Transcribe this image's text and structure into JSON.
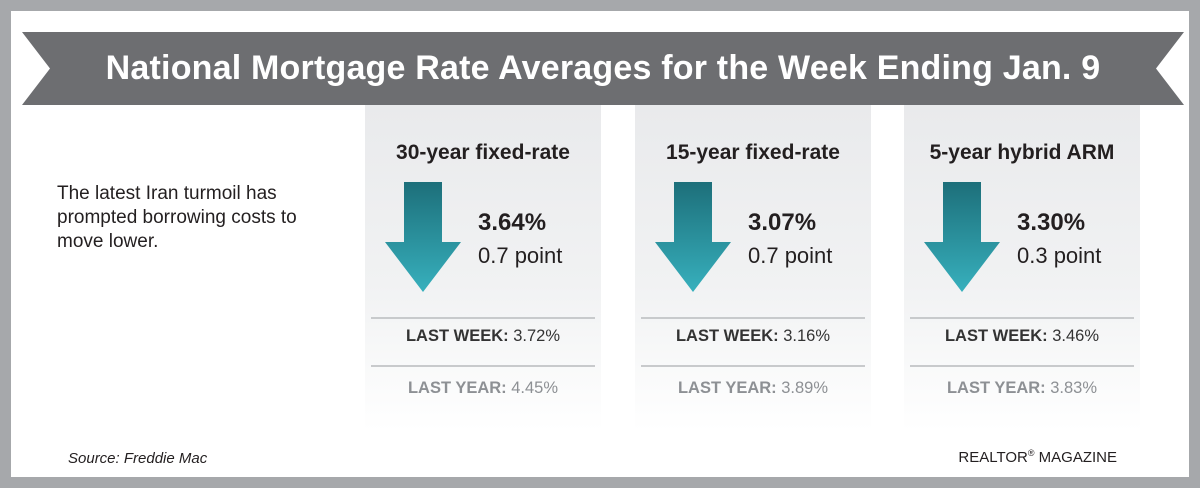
{
  "title": "National Mortgage Rate Averages for the Week Ending Jan. 9",
  "intro": "The latest Iran turmoil has prompted borrowing costs to move lower.",
  "cards": [
    {
      "title": "30-year fixed-rate",
      "rate": "3.64%",
      "change": "0.7 point",
      "direction": "down",
      "last_week_label": "LAST WEEK:",
      "last_week_value": "3.72%",
      "last_year_label": "LAST YEAR:",
      "last_year_value": "4.45%"
    },
    {
      "title": "15-year fixed-rate",
      "rate": "3.07%",
      "change": "0.7 point",
      "direction": "down",
      "last_week_label": "LAST WEEK:",
      "last_week_value": "3.16%",
      "last_year_label": "LAST YEAR:",
      "last_year_value": "3.89%"
    },
    {
      "title": "5-year hybrid ARM",
      "rate": "3.30%",
      "change": "0.3 point",
      "direction": "down",
      "last_week_label": "LAST WEEK:",
      "last_week_value": "3.46%",
      "last_year_label": "LAST YEAR:",
      "last_year_value": "3.83%"
    }
  ],
  "source": "Source: Freddie Mac",
  "brand": {
    "name": "REALTOR",
    "mark": "®",
    "suffix": " MAGAZINE"
  },
  "colors": {
    "frame": "#a6a8ab",
    "banner": "#6d6e71",
    "arrow_top": "#1d6f7a",
    "arrow_bottom": "#37b0bd"
  }
}
